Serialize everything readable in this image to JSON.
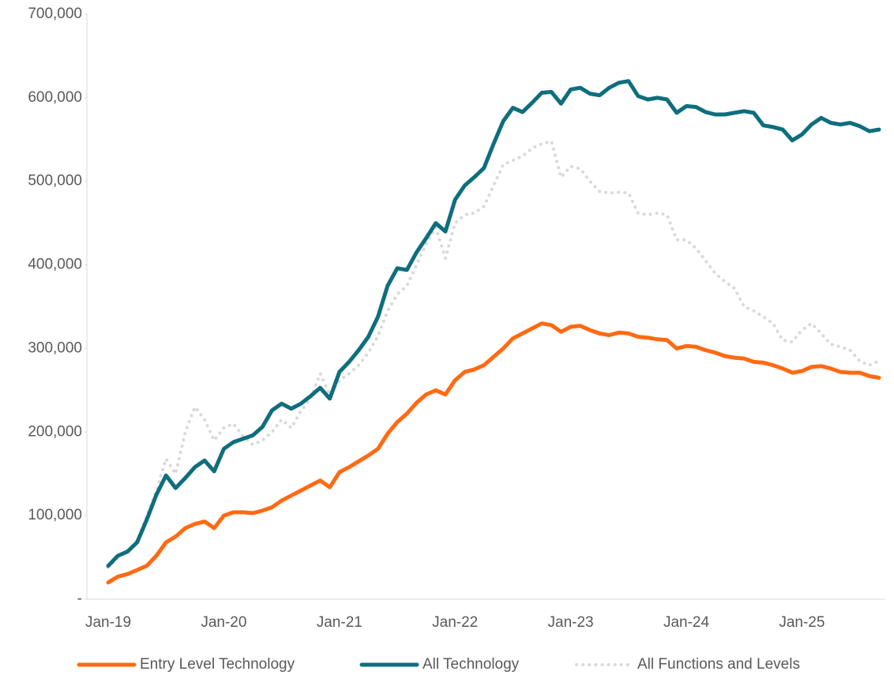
{
  "chart_data": {
    "type": "line",
    "categories": [
      "Jan-19",
      null,
      null,
      null,
      null,
      null,
      null,
      null,
      null,
      null,
      null,
      null,
      "Jan-20",
      null,
      null,
      null,
      null,
      null,
      null,
      null,
      null,
      null,
      null,
      null,
      "Jan-21",
      null,
      null,
      null,
      null,
      null,
      null,
      null,
      null,
      null,
      null,
      null,
      "Jan-22",
      null,
      null,
      null,
      null,
      null,
      null,
      null,
      null,
      null,
      null,
      null,
      "Jan-23",
      null,
      null,
      null,
      null,
      null,
      null,
      null,
      null,
      null,
      null,
      null,
      "Jan-24",
      null,
      null,
      null,
      null,
      null,
      null,
      null,
      null,
      null,
      null,
      null,
      "Jan-25",
      null,
      null,
      null,
      null,
      null,
      null,
      null,
      null
    ],
    "series": [
      {
        "name": "Entry Level Technology",
        "color": "#ff6a13",
        "style": "solid",
        "values": [
          20000,
          27000,
          30000,
          35000,
          40000,
          52000,
          68000,
          75000,
          85000,
          90000,
          93000,
          85000,
          100000,
          104000,
          104000,
          103000,
          106000,
          110000,
          118000,
          124000,
          130000,
          136000,
          142000,
          134000,
          152000,
          158000,
          165000,
          172000,
          180000,
          198000,
          212000,
          222000,
          235000,
          245000,
          250000,
          245000,
          262000,
          272000,
          275000,
          280000,
          290000,
          300000,
          312000,
          318000,
          324000,
          330000,
          328000,
          320000,
          326000,
          327000,
          322000,
          318000,
          316000,
          319000,
          318000,
          314000,
          313000,
          311000,
          310000,
          300000,
          303000,
          302000,
          298000,
          295000,
          291000,
          289000,
          288000,
          284000,
          283000,
          280000,
          276000,
          271000,
          273000,
          278000,
          279000,
          276000,
          272000,
          271000,
          271000,
          267000,
          265000
        ]
      },
      {
        "name": "All Technology",
        "color": "#0e6e7e",
        "style": "solid",
        "values": [
          40000,
          52000,
          57000,
          68000,
          95000,
          125000,
          148000,
          133000,
          145000,
          158000,
          166000,
          153000,
          180000,
          188000,
          192000,
          196000,
          206000,
          226000,
          234000,
          228000,
          234000,
          243000,
          253000,
          240000,
          272000,
          284000,
          298000,
          314000,
          338000,
          375000,
          396000,
          394000,
          415000,
          432000,
          450000,
          440000,
          478000,
          495000,
          505000,
          516000,
          545000,
          572000,
          588000,
          583000,
          594000,
          606000,
          607000,
          593000,
          610000,
          612000,
          605000,
          603000,
          612000,
          618000,
          620000,
          602000,
          598000,
          600000,
          598000,
          582000,
          590000,
          589000,
          583000,
          580000,
          580000,
          582000,
          584000,
          582000,
          567000,
          565000,
          562000,
          549000,
          556000,
          568000,
          576000,
          570000,
          568000,
          570000,
          566000,
          560000,
          562000
        ]
      },
      {
        "name": "All Functions and Levels",
        "color": "#d9d9d9",
        "style": "dotted",
        "values": [
          38000,
          50000,
          58000,
          70000,
          100000,
          130000,
          168000,
          150000,
          200000,
          230000,
          215000,
          190000,
          205000,
          210000,
          195000,
          185000,
          190000,
          200000,
          215000,
          205000,
          225000,
          240000,
          270000,
          245000,
          262000,
          270000,
          280000,
          295000,
          315000,
          345000,
          365000,
          375000,
          400000,
          425000,
          445000,
          408000,
          450000,
          460000,
          462000,
          470000,
          495000,
          520000,
          525000,
          530000,
          540000,
          545000,
          548000,
          505000,
          518000,
          515000,
          500000,
          488000,
          486000,
          487000,
          486000,
          462000,
          460000,
          462000,
          460000,
          430000,
          430000,
          420000,
          405000,
          390000,
          380000,
          372000,
          350000,
          345000,
          338000,
          330000,
          310000,
          308000,
          322000,
          330000,
          318000,
          305000,
          302000,
          298000,
          285000,
          280000,
          285000
        ]
      }
    ],
    "ylim": [
      0,
      700000
    ],
    "yticks": [
      {
        "value": 0,
        "label": "-"
      },
      {
        "value": 100000,
        "label": "100,000"
      },
      {
        "value": 200000,
        "label": "200,000"
      },
      {
        "value": 300000,
        "label": "300,000"
      },
      {
        "value": 400000,
        "label": "400,000"
      },
      {
        "value": 500000,
        "label": "500,000"
      },
      {
        "value": 600000,
        "label": "600,000"
      },
      {
        "value": 700000,
        "label": "700,000"
      }
    ],
    "grid": false,
    "legend": "bottom"
  }
}
